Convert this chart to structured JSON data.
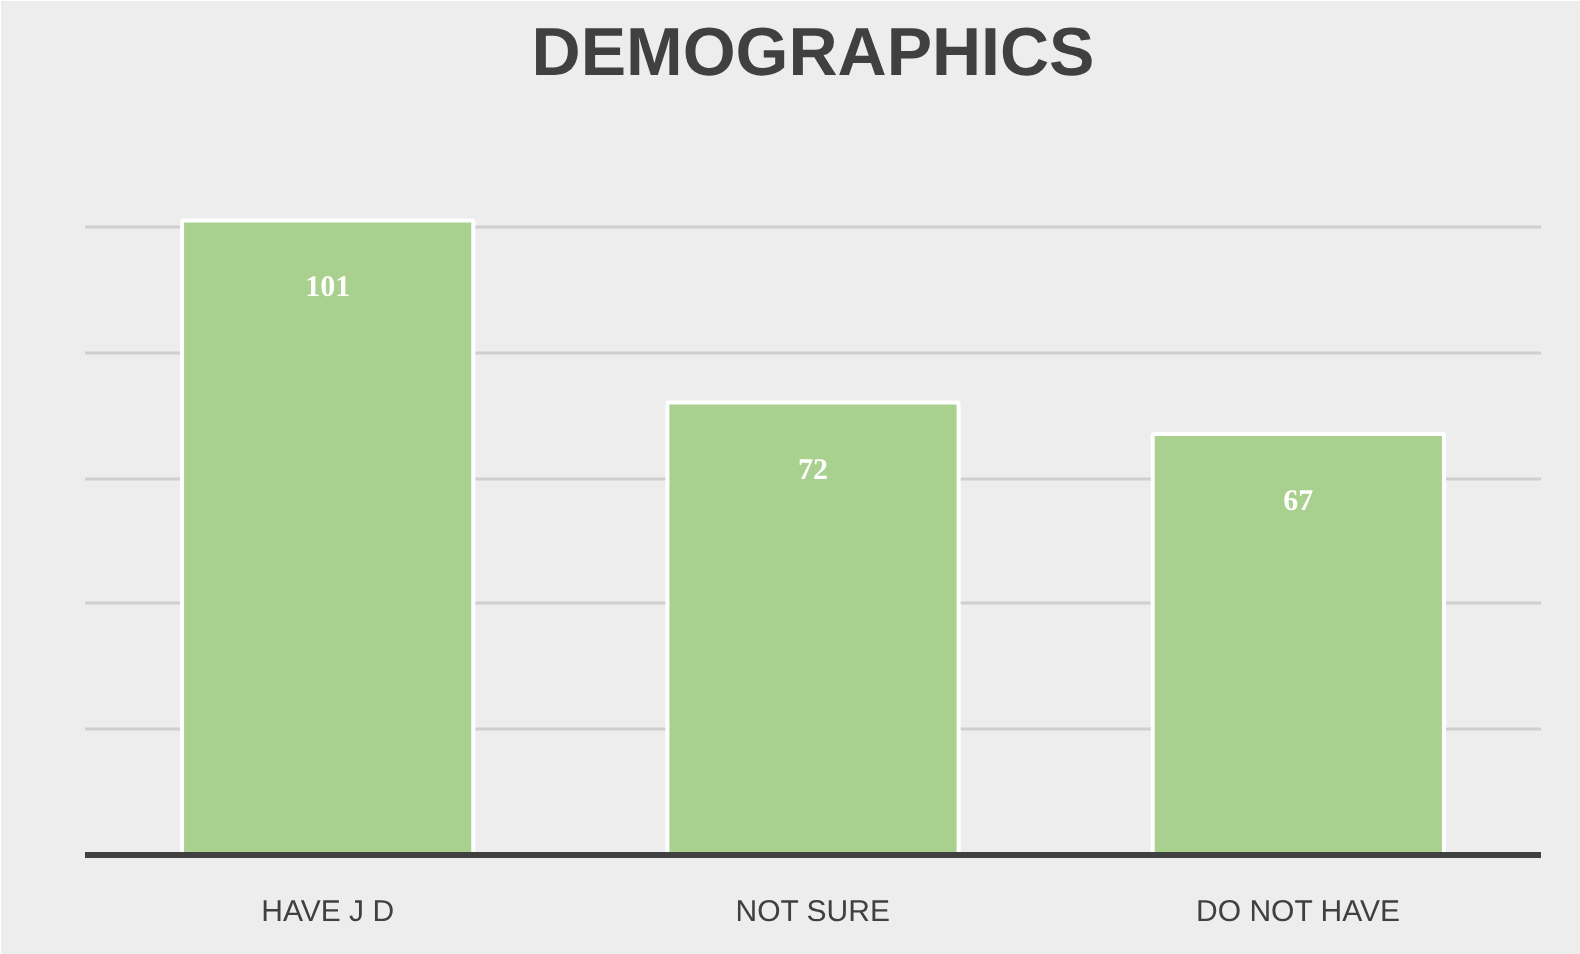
{
  "chart_data": {
    "type": "bar",
    "title": "DEMOGRAPHICS",
    "categories": [
      "HAVE J D",
      "NOT SURE",
      "DO NOT HAVE"
    ],
    "values": [
      101,
      72,
      67
    ],
    "color": "#a9d08e",
    "ylim": [
      0,
      120
    ],
    "yticks": [
      {
        "value": 0,
        "label": null
      },
      {
        "value": 20,
        "label": null
      },
      {
        "value": 40,
        "label": null
      },
      {
        "value": 60,
        "label": null
      },
      {
        "value": 80,
        "label": null
      },
      {
        "value": 100,
        "label": null
      },
      {
        "value": 120,
        "label": null
      }
    ],
    "grid": "y",
    "tick_labels": "x",
    "data_labels": true
  }
}
